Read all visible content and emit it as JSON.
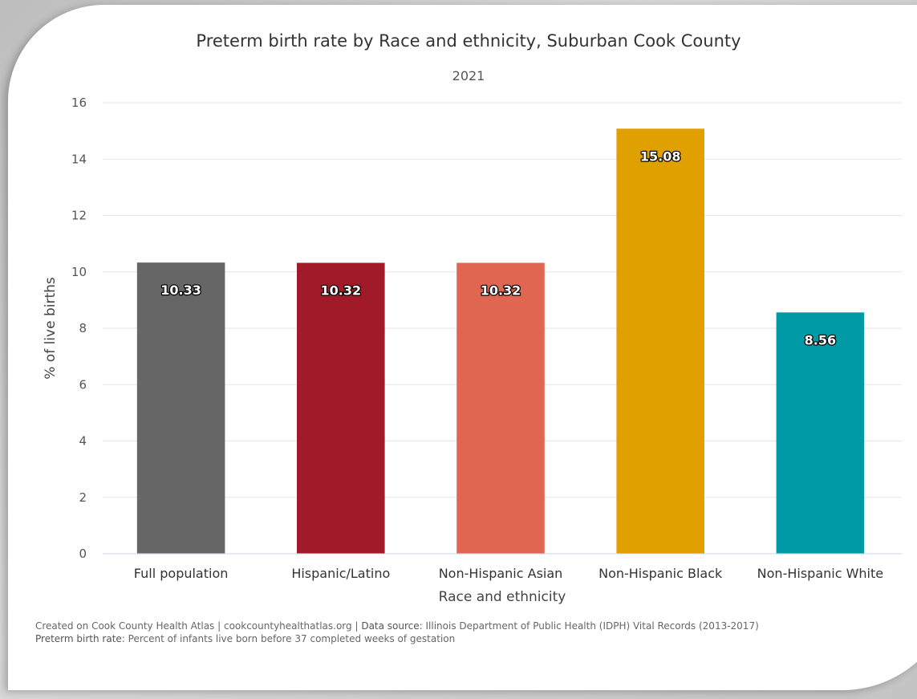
{
  "chart_data": {
    "type": "bar",
    "title": "Preterm birth rate by Race and ethnicity, Suburban Cook County",
    "subtitle": "2021",
    "xlabel": "Race and ethnicity",
    "ylabel": "% of live births",
    "ylim": [
      0,
      16
    ],
    "yticks": [
      0,
      2,
      4,
      6,
      8,
      10,
      12,
      14,
      16
    ],
    "grid": true,
    "categories": [
      "Full population",
      "Hispanic/Latino",
      "Non-Hispanic Asian",
      "Non-Hispanic Black",
      "Non-Hispanic White"
    ],
    "values": [
      10.33,
      10.32,
      10.32,
      15.08,
      8.56
    ],
    "value_labels": [
      "10.33",
      "10.32",
      "10.32",
      "15.08",
      "8.56"
    ],
    "colors": [
      "#666666",
      "#a01a2a",
      "#e06651",
      "#e0a100",
      "#009aa6"
    ]
  },
  "footer": {
    "line1_a": "Created on Cook County Health Atlas | cookcountyhealthatlas.org | ",
    "line1_b": "Data source",
    "line1_c": ": Illinois Department of Public Health (IDPH) Vital Records (2013-2017)",
    "line2_a": "Preterm birth rate",
    "line2_b": ": Percent of infants live born before 37 completed weeks of gestation"
  }
}
